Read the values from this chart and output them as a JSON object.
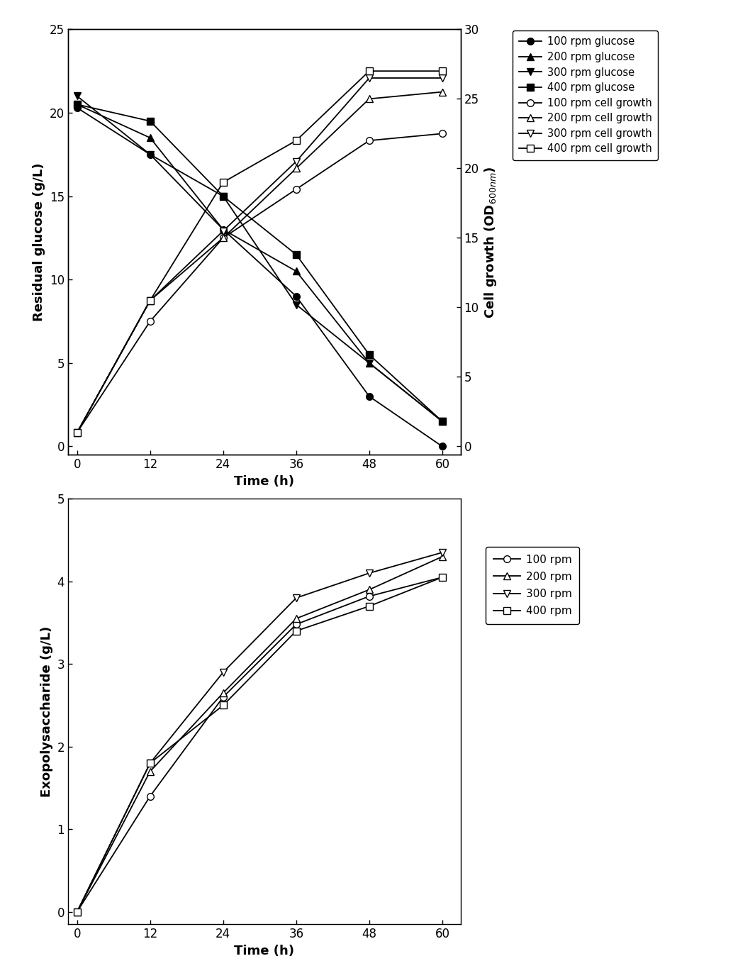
{
  "time": [
    0,
    12,
    24,
    36,
    48,
    60
  ],
  "glucose_100": [
    20.3,
    17.5,
    13.0,
    9.0,
    3.0,
    0.0
  ],
  "glucose_200": [
    20.5,
    18.5,
    13.0,
    10.5,
    5.0,
    1.5
  ],
  "glucose_300": [
    21.0,
    17.5,
    15.0,
    8.5,
    5.0,
    1.5
  ],
  "glucose_400": [
    20.5,
    19.5,
    15.0,
    11.5,
    5.5,
    1.5
  ],
  "cell_100": [
    1.0,
    9.0,
    15.0,
    18.5,
    22.0,
    22.5
  ],
  "cell_200": [
    1.0,
    10.5,
    15.0,
    20.0,
    25.0,
    25.5
  ],
  "cell_300": [
    1.0,
    10.5,
    15.5,
    20.5,
    26.5,
    26.5
  ],
  "cell_400": [
    1.0,
    10.5,
    19.0,
    22.0,
    27.0,
    27.0
  ],
  "eps_100": [
    0.0,
    1.4,
    2.6,
    3.48,
    3.82,
    4.05
  ],
  "eps_200": [
    0.0,
    1.7,
    2.65,
    3.55,
    3.9,
    4.3
  ],
  "eps_300": [
    0.0,
    1.8,
    2.9,
    3.8,
    4.1,
    4.35
  ],
  "eps_400": [
    0.0,
    1.8,
    2.5,
    3.4,
    3.7,
    4.05
  ],
  "top_ylabel_left": "Residual glucose (g/L)",
  "top_ylabel_right": "Cell growth (OD$_{600nm}$)",
  "top_xlabel": "Time (h)",
  "bot_ylabel": "Exopolysaccharide (g/L)",
  "bot_xlabel": "Time (h)",
  "color": "black",
  "lw": 1.3,
  "ms": 7
}
